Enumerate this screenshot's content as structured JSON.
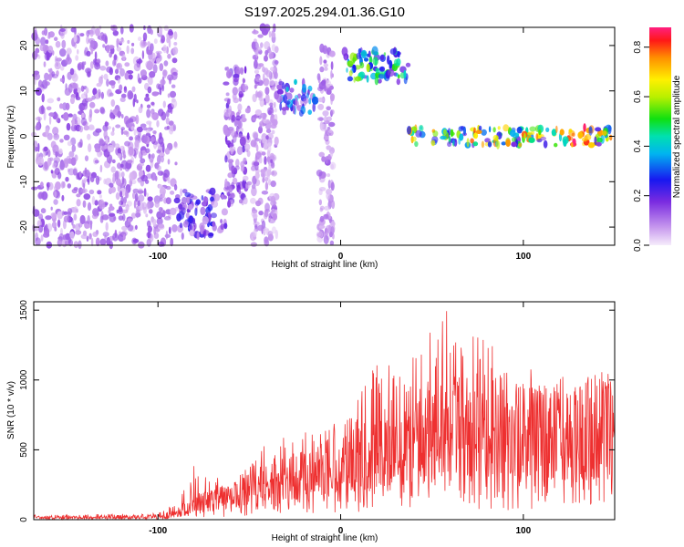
{
  "title": "S197.2025.294.01.36.G10",
  "chart_data": [
    {
      "type": "heatmap",
      "xlabel": "Height of straight line (km)",
      "ylabel": "Frequency (Hz)",
      "xlim": [
        -168,
        150
      ],
      "ylim": [
        -24,
        24
      ],
      "xticks": [
        -100,
        0,
        100
      ],
      "yticks": [
        -20,
        -10,
        0,
        10,
        20
      ],
      "colorbar": {
        "label": "Normalized spectral amplitude",
        "range": [
          0.0,
          0.88
        ],
        "ticks": [
          0.0,
          0.2,
          0.4,
          0.6,
          0.8
        ],
        "tick_labels": [
          "0.0",
          "0.2",
          "0.4",
          "0.6",
          "0.8"
        ]
      },
      "segments": [
        {
          "x_range": [
            -168,
            -90
          ],
          "freq_range": [
            -24,
            24
          ],
          "amplitude": 0.12,
          "note": "broadband noise"
        },
        {
          "x_range": [
            -90,
            -63
          ],
          "freq_range": [
            -22,
            -12
          ],
          "amplitude": 0.2
        },
        {
          "x_range": [
            -63,
            -50
          ],
          "freq_range": [
            -15,
            15
          ],
          "amplitude": 0.15
        },
        {
          "x_range": [
            -48,
            -35
          ],
          "freq_range": [
            -24,
            24
          ],
          "amplitude": 0.1
        },
        {
          "x_range": [
            -34,
            -13
          ],
          "freq_range": [
            5,
            12
          ],
          "amplitude": 0.3
        },
        {
          "x_range": [
            -12,
            -4
          ],
          "freq_range": [
            -24,
            20
          ],
          "amplitude": 0.1
        },
        {
          "x_range": [
            2,
            37
          ],
          "freq_range": [
            12,
            19
          ],
          "amplitude": 0.45
        },
        {
          "x_range": [
            37,
            150
          ],
          "freq_range": [
            -2,
            2
          ],
          "amplitude": 0.6,
          "peak": {
            "x": 130,
            "value": 0.85
          }
        }
      ]
    },
    {
      "type": "line",
      "xlabel": "Height of straight line (km)",
      "ylabel": "SNR (10 * v/v)",
      "xlim": [
        -168,
        150
      ],
      "ylim": [
        0,
        1560
      ],
      "xticks": [
        -100,
        0,
        100
      ],
      "yticks": [
        0,
        500,
        1000,
        1500
      ],
      "color": "#ee3030",
      "envelope": {
        "x": [
          -168,
          -130,
          -100,
          -90,
          -80,
          -60,
          -40,
          -20,
          0,
          20,
          40,
          60,
          80,
          100,
          120,
          150
        ],
        "y_typical": [
          15,
          20,
          25,
          60,
          120,
          180,
          260,
          340,
          420,
          520,
          650,
          720,
          700,
          650,
          680,
          720
        ],
        "y_peak": [
          35,
          40,
          45,
          120,
          400,
          240,
          560,
          640,
          700,
          1130,
          1350,
          1560,
          1300,
          1100,
          1000,
          1000
        ]
      }
    }
  ]
}
